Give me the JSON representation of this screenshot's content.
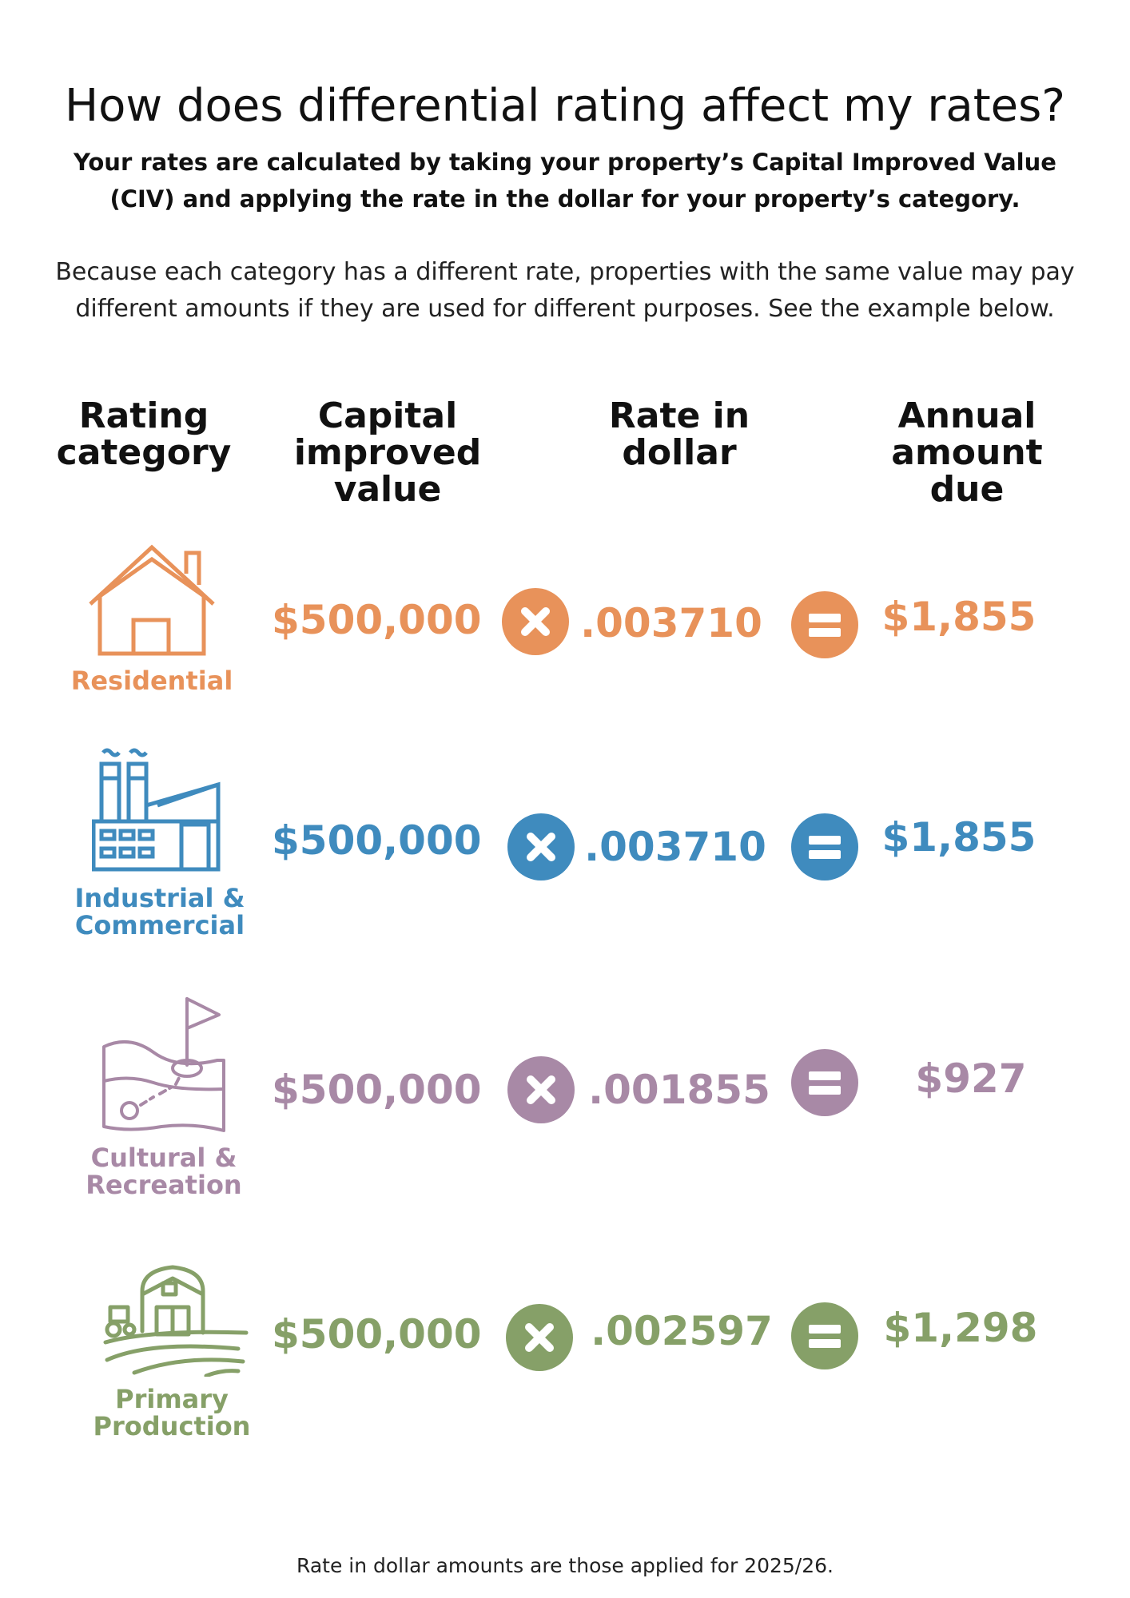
{
  "title": "How does differential rating affect my rates?",
  "subtitle": "Your rates are calculated by taking your property’s Capital Improved Value (CIV) and applying the rate in the dollar for your property’s category.",
  "intro": "Because each category has a different rate, properties with the same value may pay different amounts if they are used for different purposes.  See the example below.",
  "columns": {
    "category": "Rating category",
    "civ": "Capital improved value",
    "rate": "Rate in dollar",
    "due": "Annual amount due"
  },
  "rows": [
    {
      "category": "Residential",
      "civ": "$500,000",
      "rate": ".003710",
      "due": "$1,855",
      "color": "#E8925A",
      "icon": "house-icon"
    },
    {
      "category": "Industrial & Commercial",
      "civ": "$500,000",
      "rate": ".003710",
      "due": "$1,855",
      "color": "#3F8BBE",
      "icon": "factory-icon"
    },
    {
      "category": "Cultural & Recreation",
      "civ": "$500,000",
      "rate": ".001855",
      "due": "$927",
      "color": "#A889A6",
      "icon": "golf-course-icon"
    },
    {
      "category": "Primary Production",
      "civ": "$500,000",
      "rate": ".002597",
      "due": "$1,298",
      "color": "#86A068",
      "icon": "farm-barn-icon"
    }
  ],
  "operators": {
    "multiply": "multiply-icon",
    "equals": "equals-icon"
  },
  "footnote": "Rate in dollar amounts are those applied for 2025/26."
}
